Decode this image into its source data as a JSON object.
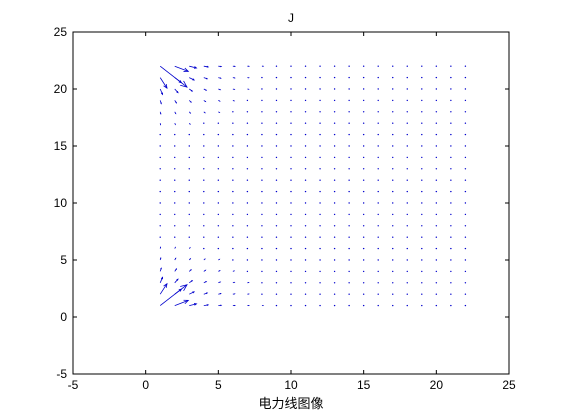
{
  "chart_data": {
    "type": "quiver",
    "title": "J",
    "xlabel": "电力线图像",
    "ylabel": "",
    "xlim": [
      -5,
      25
    ],
    "ylim": [
      -5,
      25
    ],
    "xticks": [
      -5,
      0,
      5,
      10,
      15,
      20,
      25
    ],
    "yticks": [
      -5,
      0,
      5,
      10,
      15,
      20,
      25
    ],
    "grid": false,
    "arrow_color": "#0000cc",
    "field": {
      "x_start": 1,
      "x_end": 22,
      "x_step": 1,
      "y_start": 1,
      "y_end": 22,
      "y_step": 1,
      "charges": [
        {
          "x": 0,
          "y": 0,
          "q": 1
        },
        {
          "x": 0,
          "y": 23,
          "q": 1
        }
      ]
    }
  }
}
